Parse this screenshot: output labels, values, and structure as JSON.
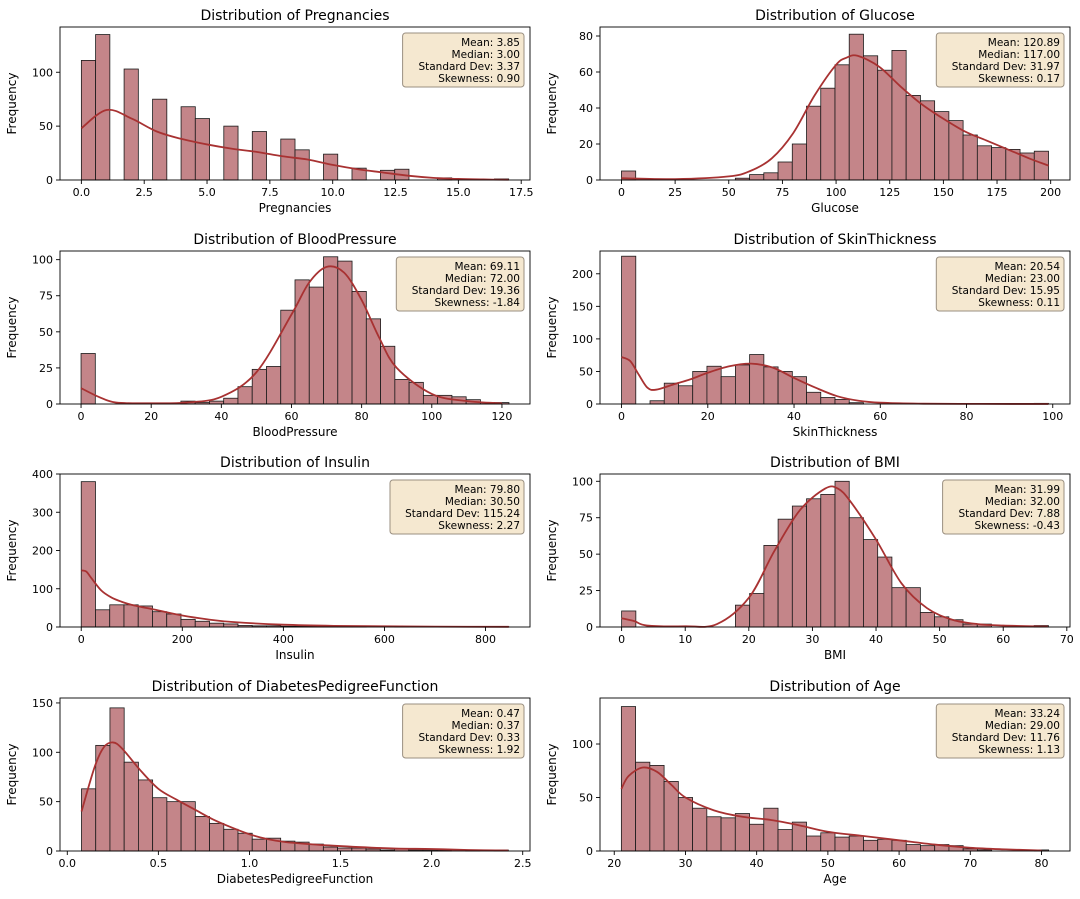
{
  "figure": {
    "style": {
      "bar_fill": "#c48589",
      "bar_edge": "#1a1a1a",
      "kde_color": "#a83232",
      "stats_box_fill": "#f5e8d0",
      "stats_box_edge": "#9a8f80"
    }
  },
  "chart_data": [
    {
      "type": "bar",
      "title": "Distribution of Pregnancies",
      "xlabel": "Pregnancies",
      "ylabel": "Frequency",
      "xlim": [
        -0.85,
        17.85
      ],
      "ylim": [
        0,
        142
      ],
      "xticks": [
        0.0,
        2.5,
        5.0,
        7.5,
        10.0,
        12.5,
        15.0,
        17.5
      ],
      "xtick_labels": [
        "0.0",
        "2.5",
        "5.0",
        "7.5",
        "10.0",
        "12.5",
        "15.0",
        "17.5"
      ],
      "yticks": [
        0,
        50,
        100
      ],
      "bin_start": 0,
      "bin_width": 0.5667,
      "values": [
        111,
        135,
        0,
        103,
        0,
        75,
        0,
        68,
        57,
        0,
        50,
        0,
        45,
        0,
        38,
        28,
        0,
        24,
        0,
        11,
        0,
        9,
        10,
        0,
        0,
        2,
        0,
        0,
        0,
        1
      ],
      "kde": {
        "x": [
          0,
          1,
          2,
          3,
          4,
          5,
          6,
          7,
          8,
          9,
          10,
          11,
          12,
          13,
          14,
          15,
          16,
          17
        ],
        "y": [
          48,
          65,
          57,
          45,
          38,
          33,
          29,
          26,
          22,
          19,
          14,
          10,
          7,
          4,
          2,
          1,
          0.5,
          0.2
        ]
      },
      "stats": [
        "Mean: 3.85",
        "Median: 3.00",
        "Standard Dev: 3.37",
        "Skewness: 0.90"
      ]
    },
    {
      "type": "bar",
      "title": "Distribution of Glucose",
      "xlabel": "Glucose",
      "ylabel": "Frequency",
      "xlim": [
        -10,
        209
      ],
      "ylim": [
        0,
        85
      ],
      "xticks": [
        0,
        25,
        50,
        75,
        100,
        125,
        150,
        175,
        200
      ],
      "xtick_labels": [
        "0",
        "25",
        "50",
        "75",
        "100",
        "125",
        "150",
        "175",
        "200"
      ],
      "yticks": [
        0,
        20,
        40,
        60,
        80
      ],
      "bin_start": 0,
      "bin_width": 6.633,
      "values": [
        5,
        0,
        0,
        0,
        0,
        0,
        0,
        0,
        1,
        3,
        4,
        10,
        20,
        41,
        51,
        64,
        81,
        69,
        61,
        72,
        47,
        44,
        38,
        33,
        25,
        19,
        18,
        17,
        15,
        16
      ],
      "kde": {
        "x": [
          0,
          25,
          50,
          60,
          70,
          80,
          90,
          100,
          105,
          110,
          120,
          130,
          140,
          150,
          160,
          170,
          180,
          190,
          199
        ],
        "y": [
          1,
          0.5,
          2,
          5,
          12,
          26,
          47,
          64,
          68,
          69,
          63,
          52,
          42,
          34,
          27,
          22,
          17,
          12,
          8
        ]
      },
      "stats": [
        "Mean: 120.89",
        "Median: 117.00",
        "Standard Dev: 31.97",
        "Skewness: 0.17"
      ]
    },
    {
      "type": "bar",
      "title": "Distribution of BloodPressure",
      "xlabel": "BloodPressure",
      "ylabel": "Frequency",
      "xlim": [
        -6,
        128
      ],
      "ylim": [
        0,
        106
      ],
      "xticks": [
        0,
        20,
        40,
        60,
        80,
        100,
        120
      ],
      "xtick_labels": [
        "0",
        "20",
        "40",
        "60",
        "80",
        "100",
        "120"
      ],
      "yticks": [
        0,
        25,
        50,
        75,
        100
      ],
      "bin_start": 0,
      "bin_width": 4.0667,
      "values": [
        35,
        0,
        0,
        0,
        0,
        0,
        0,
        2,
        1,
        2,
        4,
        12,
        24,
        26,
        65,
        86,
        81,
        102,
        99,
        78,
        59,
        40,
        17,
        15,
        6,
        6,
        5,
        3,
        1,
        1
      ],
      "kde": {
        "x": [
          0,
          5,
          10,
          20,
          30,
          40,
          50,
          60,
          65,
          70,
          75,
          80,
          85,
          90,
          100,
          110,
          120
        ],
        "y": [
          11,
          5,
          1,
          0.5,
          1,
          5,
          22,
          62,
          84,
          95,
          91,
          72,
          46,
          25,
          7,
          2,
          0.5
        ]
      },
      "stats": [
        "Mean: 69.11",
        "Median: 72.00",
        "Standard Dev: 19.36",
        "Skewness: -1.84"
      ]
    },
    {
      "type": "bar",
      "title": "Distribution of SkinThickness",
      "xlabel": "SkinThickness",
      "ylabel": "Frequency",
      "xlim": [
        -5,
        104
      ],
      "ylim": [
        0,
        235
      ],
      "xticks": [
        0,
        20,
        40,
        60,
        80,
        100
      ],
      "xtick_labels": [
        "0",
        "20",
        "40",
        "60",
        "80",
        "100"
      ],
      "yticks": [
        0,
        50,
        100,
        150,
        200
      ],
      "bin_start": 0,
      "bin_width": 3.3,
      "values": [
        227,
        0,
        5,
        32,
        28,
        50,
        58,
        42,
        60,
        76,
        57,
        50,
        42,
        18,
        10,
        7,
        2,
        0,
        0,
        0,
        0,
        0,
        0,
        0,
        0,
        0,
        0,
        0,
        0,
        1
      ],
      "kde": {
        "x": [
          0,
          2,
          4,
          6,
          8,
          12,
          16,
          20,
          25,
          30,
          35,
          40,
          45,
          50,
          55,
          60,
          70,
          80,
          90,
          99
        ],
        "y": [
          72,
          66,
          45,
          25,
          22,
          30,
          38,
          48,
          58,
          62,
          56,
          40,
          25,
          12,
          5,
          2,
          0.5,
          0.2,
          0.1,
          0.1
        ]
      },
      "stats": [
        "Mean: 20.54",
        "Median: 23.00",
        "Standard Dev: 15.95",
        "Skewness: 0.11"
      ]
    },
    {
      "type": "bar",
      "title": "Distribution of Insulin",
      "xlabel": "Insulin",
      "ylabel": "Frequency",
      "xlim": [
        -42,
        888
      ],
      "ylim": [
        0,
        400
      ],
      "xticks": [
        0,
        200,
        400,
        600,
        800
      ],
      "xtick_labels": [
        "0",
        "200",
        "400",
        "600",
        "800"
      ],
      "yticks": [
        0,
        100,
        200,
        300,
        400
      ],
      "bin_start": 0,
      "bin_width": 28.2,
      "values": [
        380,
        45,
        58,
        58,
        55,
        40,
        34,
        20,
        15,
        10,
        8,
        4,
        3,
        3,
        2,
        2,
        2,
        1,
        1,
        1,
        0,
        0,
        1,
        0,
        0,
        0,
        0,
        1,
        0,
        1
      ],
      "kde": {
        "x": [
          0,
          10,
          20,
          40,
          60,
          80,
          100,
          150,
          200,
          250,
          300,
          400,
          500,
          600,
          700,
          846
        ],
        "y": [
          148,
          145,
          128,
          95,
          77,
          66,
          58,
          44,
          30,
          20,
          13,
          6,
          3,
          2,
          1,
          0.5
        ]
      },
      "stats": [
        "Mean: 79.80",
        "Median: 30.50",
        "Standard Dev: 115.24",
        "Skewness: 2.27"
      ]
    },
    {
      "type": "bar",
      "title": "Distribution of BMI",
      "xlabel": "BMI",
      "ylabel": "Frequency",
      "xlim": [
        -3.4,
        70.5
      ],
      "ylim": [
        0,
        105
      ],
      "xticks": [
        0,
        10,
        20,
        30,
        40,
        50,
        60,
        70
      ],
      "xtick_labels": [
        "0",
        "10",
        "20",
        "30",
        "40",
        "50",
        "60",
        "70"
      ],
      "yticks": [
        0,
        25,
        50,
        75,
        100
      ],
      "bin_start": 0,
      "bin_width": 2.2367,
      "values": [
        11,
        0,
        0,
        0,
        0,
        0,
        0,
        0,
        15,
        23,
        56,
        74,
        83,
        88,
        91,
        100,
        75,
        60,
        48,
        27,
        27,
        10,
        7,
        5,
        2,
        2,
        0,
        0,
        0,
        1
      ],
      "kde": {
        "x": [
          0,
          2,
          4,
          10,
          15,
          20,
          24,
          28,
          32,
          34,
          36,
          40,
          44,
          48,
          52,
          56,
          60,
          67
        ],
        "y": [
          6,
          4,
          1,
          0.5,
          2,
          20,
          52,
          80,
          95,
          95,
          86,
          60,
          30,
          13,
          5,
          2,
          1,
          0.3
        ]
      },
      "stats": [
        "Mean: 31.99",
        "Median: 32.00",
        "Standard Dev: 7.88",
        "Skewness: -0.43"
      ]
    },
    {
      "type": "bar",
      "title": "Distribution of DiabetesPedigreeFunction",
      "xlabel": "DiabetesPedigreeFunction",
      "ylabel": "Frequency",
      "xlim": [
        -0.04,
        2.54
      ],
      "ylim": [
        0,
        155
      ],
      "xticks": [
        0.0,
        0.5,
        1.0,
        1.5,
        2.0,
        2.5
      ],
      "xtick_labels": [
        "0.0",
        "0.5",
        "1.0",
        "1.5",
        "2.0",
        "2.5"
      ],
      "yticks": [
        0,
        50,
        100,
        150
      ],
      "bin_start": 0.078,
      "bin_width": 0.0781,
      "values": [
        63,
        107,
        145,
        90,
        72,
        54,
        50,
        50,
        35,
        28,
        22,
        18,
        12,
        13,
        10,
        9,
        7,
        4,
        3,
        3,
        2,
        1,
        2,
        1,
        1,
        1,
        0,
        1,
        0,
        1
      ],
      "kde": {
        "x": [
          0.078,
          0.15,
          0.2,
          0.25,
          0.3,
          0.4,
          0.5,
          0.6,
          0.7,
          0.8,
          0.9,
          1.0,
          1.1,
          1.2,
          1.4,
          1.6,
          1.8,
          2.0,
          2.2,
          2.42
        ],
        "y": [
          40,
          85,
          105,
          110,
          104,
          82,
          63,
          52,
          42,
          32,
          24,
          17,
          12,
          9,
          6,
          4,
          2.5,
          2,
          1,
          0.5
        ]
      },
      "stats": [
        "Mean: 0.47",
        "Median: 0.37",
        "Standard Dev: 0.33",
        "Skewness: 1.92"
      ]
    },
    {
      "type": "bar",
      "title": "Distribution of Age",
      "xlabel": "Age",
      "ylabel": "Frequency",
      "xlim": [
        18,
        84
      ],
      "ylim": [
        0,
        143
      ],
      "xticks": [
        20,
        30,
        40,
        50,
        60,
        70,
        80
      ],
      "xtick_labels": [
        "20",
        "30",
        "40",
        "50",
        "60",
        "70",
        "80"
      ],
      "yticks": [
        0,
        50,
        100
      ],
      "bin_start": 21,
      "bin_width": 2,
      "values": [
        135,
        83,
        80,
        65,
        50,
        40,
        32,
        31,
        35,
        25,
        40,
        20,
        27,
        14,
        17,
        13,
        14,
        10,
        11,
        10,
        6,
        5,
        6,
        5,
        2,
        1,
        0,
        0,
        0,
        1
      ],
      "kde": {
        "x": [
          21,
          22,
          24,
          26,
          28,
          30,
          34,
          38,
          42,
          46,
          50,
          55,
          60,
          65,
          70,
          75,
          80
        ],
        "y": [
          58,
          70,
          78,
          74,
          62,
          50,
          38,
          32,
          29,
          24,
          18,
          14,
          10,
          6,
          3,
          1.5,
          0.5
        ]
      },
      "stats": [
        "Mean: 33.24",
        "Median: 29.00",
        "Standard Dev: 11.76",
        "Skewness: 1.13"
      ]
    }
  ]
}
